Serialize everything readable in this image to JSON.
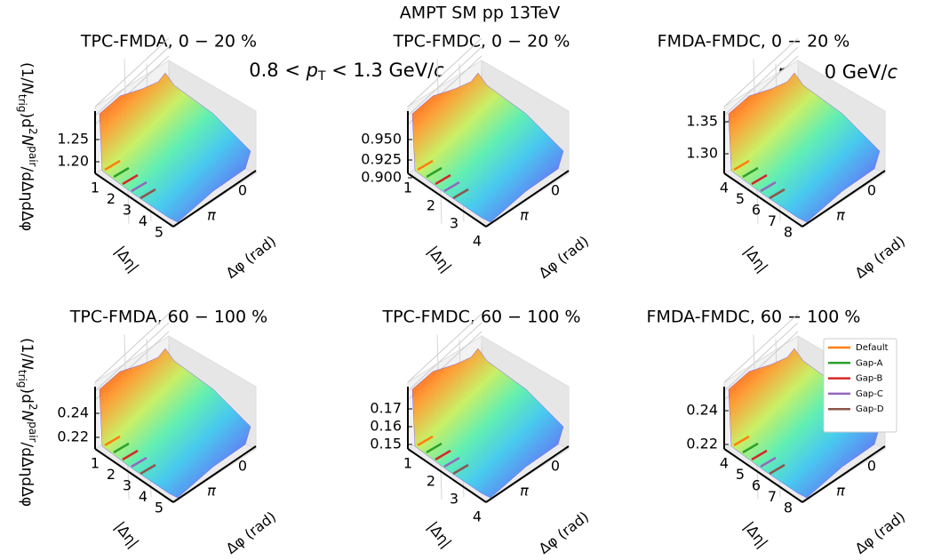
{
  "title": "AMPT SM  pp 13TeV",
  "annotations": [
    {
      "pre": "0.8 < ",
      "sym": "p",
      "sub": "T",
      "post": " < 1.3 GeV/",
      "unit": "c"
    },
    {
      "pre": "",
      "sym": "p",
      "sub": "T",
      "post": " > 0 GeV/",
      "unit": "c"
    }
  ],
  "ylabel": [
    {
      "t": "(1/",
      "s": "n"
    },
    {
      "t": "N",
      "s": "i"
    },
    {
      "t": "trig",
      "s": "sub"
    },
    {
      "t": ")d",
      "s": "n"
    },
    {
      "t": "2",
      "s": "sup"
    },
    {
      "t": "N",
      "s": "i"
    },
    {
      "t": "pair",
      "s": "sup"
    },
    {
      "t": "/dΔηdΔφ",
      "s": "n"
    }
  ],
  "eta_label": "|Δη|",
  "phi_label": "Δφ (rad)",
  "phi_ticks": [
    "π",
    "0"
  ],
  "panels": [
    {
      "title": "TPC-FMDA, 0 − 20 %",
      "zticks": [
        "1.25",
        "1.20"
      ],
      "eta_ticks": [
        1,
        2,
        3,
        4,
        5
      ]
    },
    {
      "title": "TPC-FMDC, 0 − 20 %",
      "zticks": [
        "0.950",
        "0.925",
        "0.900"
      ],
      "eta_ticks": [
        1,
        2,
        3,
        4
      ]
    },
    {
      "title": "FMDA-FMDC, 0 − 20 %",
      "zticks": [
        "1.35",
        "1.30"
      ],
      "eta_ticks": [
        4,
        5,
        6,
        7,
        8
      ]
    },
    {
      "title": "TPC-FMDA, 60 − 100 %",
      "zticks": [
        "0.24",
        "0.22"
      ],
      "eta_ticks": [
        1,
        2,
        3,
        4,
        5
      ]
    },
    {
      "title": "TPC-FMDC, 60 − 100 %",
      "zticks": [
        "0.17",
        "0.16",
        "0.15"
      ],
      "eta_ticks": [
        1,
        2,
        3,
        4
      ]
    },
    {
      "title": "FMDA-FMDC, 60 − 100 %",
      "zticks": [
        "0.24",
        "0.22"
      ],
      "eta_ticks": [
        4,
        5,
        6,
        7,
        8
      ]
    }
  ],
  "legend": [
    {
      "name": "Default",
      "color": "#ff7f0e"
    },
    {
      "name": "Gap-A",
      "color": "#2ca02c"
    },
    {
      "name": "Gap-B",
      "color": "#d62728"
    },
    {
      "name": "Gap-C",
      "color": "#9467bd"
    },
    {
      "name": "Gap-D",
      "color": "#8c564b"
    }
  ]
}
